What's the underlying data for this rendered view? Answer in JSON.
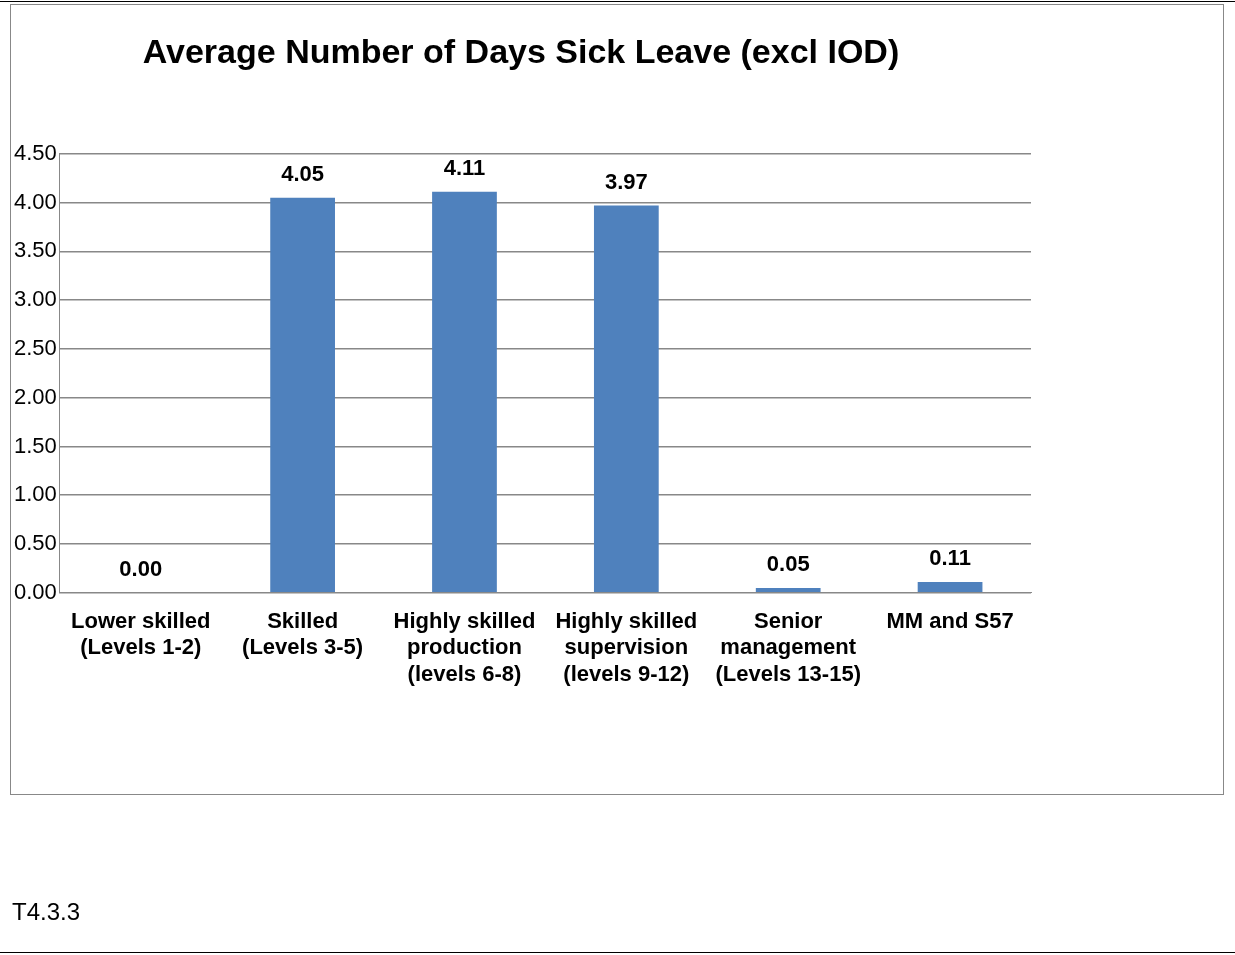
{
  "chart_data": {
    "type": "bar",
    "title": "Average Number of Days Sick Leave (excl IOD)",
    "categories": [
      "Lower skilled (Levels 1-2)",
      "Skilled (Levels 3-5)",
      "Highly skilled production (levels 6-8)",
      "Highly skilled supervision (levels 9-12)",
      "Senior management (Levels 13-15)",
      "MM and S57"
    ],
    "values": [
      0,
      4.05,
      4.11,
      3.97,
      0.05,
      0.11
    ],
    "value_labels": [
      "0.00",
      "4.05",
      "4.11",
      "3.97",
      "0.05",
      "0.11"
    ],
    "color": "#4f81bd",
    "ylim": [
      0,
      4.5
    ],
    "yticks": [
      {
        "value": 0,
        "label": "0.00"
      },
      {
        "value": 0.5,
        "label": "0.50"
      },
      {
        "value": 1,
        "label": "1.00"
      },
      {
        "value": 1.5,
        "label": "1.50"
      },
      {
        "value": 2,
        "label": "2.00"
      },
      {
        "value": 2.5,
        "label": "2.50"
      },
      {
        "value": 3,
        "label": "3.00"
      },
      {
        "value": 3.5,
        "label": "3.50"
      },
      {
        "value": 4,
        "label": "4.00"
      },
      {
        "value": 4.5,
        "label": "4.50"
      }
    ],
    "grid": "y",
    "legend": false,
    "annotations": [
      "T4.3.3"
    ]
  }
}
